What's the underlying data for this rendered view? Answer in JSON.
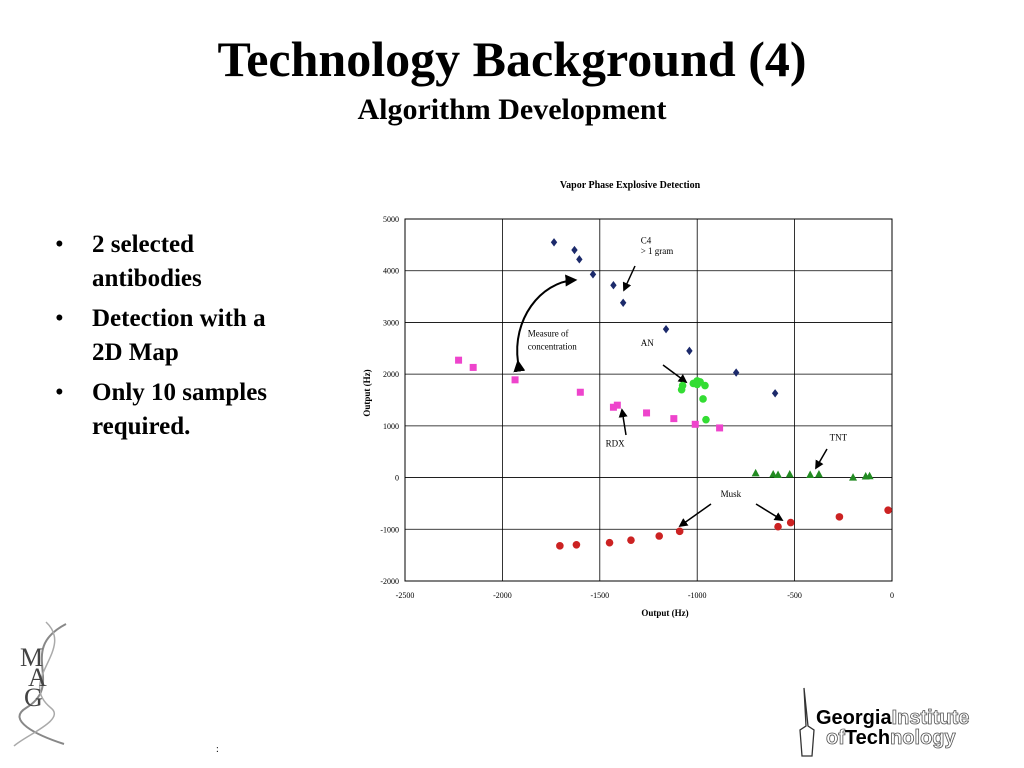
{
  "slide": {
    "title": "Technology Background (4)",
    "subtitle": "Algorithm Development",
    "footer_mark": ":"
  },
  "bullets": [
    {
      "dot": "•",
      "text": "2 selected antibodies"
    },
    {
      "dot": "•",
      "text": "Detection  with a 2D Map"
    },
    {
      "dot": "•",
      "text": "Only 10 samples required."
    }
  ],
  "logos": {
    "mag": {
      "letters": [
        "M",
        "A",
        "G"
      ]
    },
    "gt": {
      "line1_bold": "Georgia",
      "line1_outline": "Institute",
      "line2_outline_a": "of",
      "line2_bold": "Tech",
      "line2_outline_b": "nology"
    }
  },
  "colors": {
    "grid": "#000000",
    "c4": "#1c2a6b",
    "an": "#33dd33",
    "rdx": "#ee44cc",
    "tnt": "#228b22",
    "musk": "#cc2222"
  },
  "chart_data": {
    "type": "scatter",
    "title": "Vapor Phase Explosive Detection",
    "xlabel": "Output (Hz)",
    "ylabel": "Output (Hz)",
    "xlim": [
      -2500,
      0
    ],
    "ylim": [
      -2000,
      5000
    ],
    "xticks": [
      -2500,
      -2000,
      -1500,
      -1000,
      -500,
      0
    ],
    "yticks": [
      -2000,
      -1000,
      0,
      1000,
      2000,
      3000,
      4000,
      5000
    ],
    "grid": true,
    "legend": "none",
    "series": [
      {
        "key": "c4",
        "marker": "diamond",
        "color": "#1c2a6b",
        "points": [
          [
            -1735,
            4550
          ],
          [
            -1630,
            4400
          ],
          [
            -1605,
            4220
          ],
          [
            -1535,
            3930
          ],
          [
            -1430,
            3720
          ],
          [
            -1380,
            3380
          ],
          [
            -1160,
            2870
          ],
          [
            -1040,
            2450
          ],
          [
            -800,
            2030
          ],
          [
            -600,
            1630
          ]
        ]
      },
      {
        "key": "an",
        "marker": "circle",
        "color": "#33dd33",
        "points": [
          [
            -1080,
            1700
          ],
          [
            -1075,
            1780
          ],
          [
            -1020,
            1820
          ],
          [
            -1000,
            1870
          ],
          [
            -985,
            1850
          ],
          [
            -960,
            1780
          ],
          [
            -970,
            1520
          ],
          [
            -955,
            1120
          ],
          [
            -1000,
            1800
          ]
        ]
      },
      {
        "key": "rdx",
        "marker": "square",
        "color": "#ee44cc",
        "points": [
          [
            -2225,
            2270
          ],
          [
            -2150,
            2130
          ],
          [
            -1935,
            1890
          ],
          [
            -1600,
            1650
          ],
          [
            -1430,
            1360
          ],
          [
            -1410,
            1400
          ],
          [
            -1260,
            1250
          ],
          [
            -1120,
            1140
          ],
          [
            -1010,
            1030
          ],
          [
            -885,
            960
          ]
        ]
      },
      {
        "key": "tnt",
        "marker": "triangle",
        "color": "#228b22",
        "points": [
          [
            -700,
            80
          ],
          [
            -610,
            60
          ],
          [
            -585,
            50
          ],
          [
            -525,
            60
          ],
          [
            -420,
            50
          ],
          [
            -375,
            60
          ],
          [
            -200,
            0
          ],
          [
            -135,
            20
          ],
          [
            -115,
            25
          ]
        ]
      },
      {
        "key": "musk",
        "marker": "circle",
        "color": "#cc2222",
        "points": [
          [
            -1705,
            -1320
          ],
          [
            -1620,
            -1300
          ],
          [
            -1450,
            -1260
          ],
          [
            -1340,
            -1210
          ],
          [
            -1195,
            -1130
          ],
          [
            -1090,
            -1040
          ],
          [
            -585,
            -950
          ],
          [
            -520,
            -870
          ],
          [
            -270,
            -760
          ],
          [
            -20,
            -630
          ]
        ]
      }
    ],
    "annotations": [
      {
        "text": "C4",
        "x": -1290,
        "y": 4530
      },
      {
        "text": "> 1 gram",
        "x": -1290,
        "y": 4320
      },
      {
        "text": "Measure of",
        "x": -1870,
        "y": 2730
      },
      {
        "text": "concentration",
        "x": -1870,
        "y": 2480
      },
      {
        "text": "AN",
        "x": -1290,
        "y": 2540
      },
      {
        "text": "RDX",
        "x": -1470,
        "y": 600
      },
      {
        "text": "TNT",
        "x": -320,
        "y": 720
      },
      {
        "text": "Musk",
        "x": -880,
        "y": -380
      }
    ]
  }
}
